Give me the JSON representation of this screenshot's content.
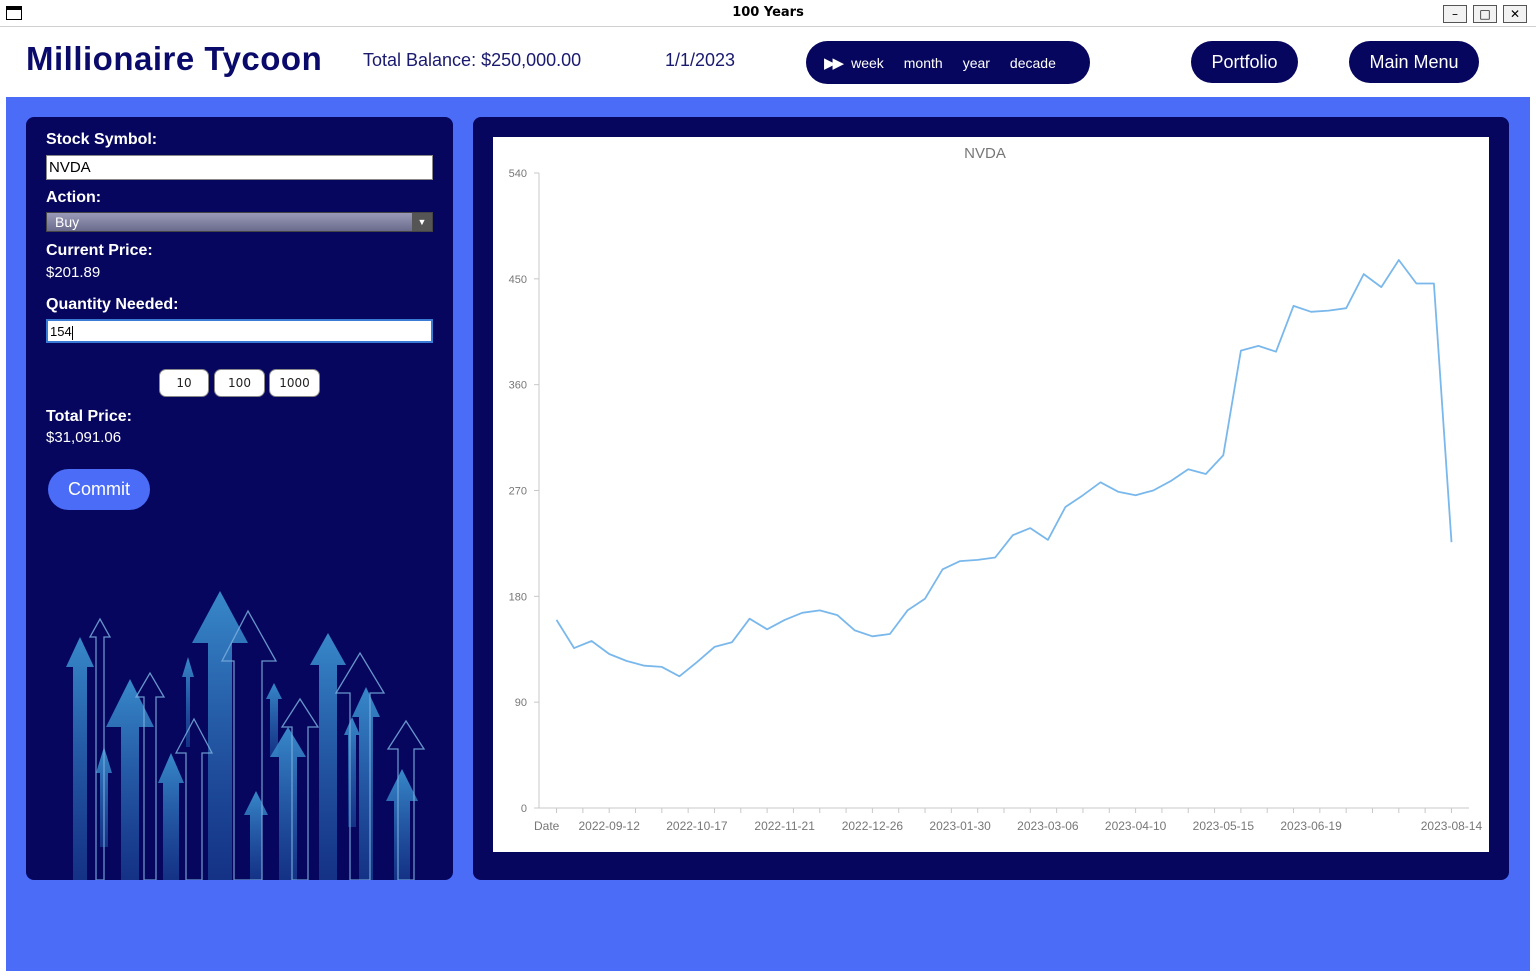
{
  "window": {
    "title": "100 Years",
    "min_glyph": "–",
    "max_glyph": "□",
    "close_glyph": "✕"
  },
  "header": {
    "brand": "Millionaire Tycoon",
    "balance": "Total Balance: $250,000.00",
    "date": "1/1/2023",
    "speed": {
      "icon": "fast-forward-icon",
      "glyph": "▶▶",
      "options": [
        "week",
        "month",
        "year",
        "decade"
      ]
    },
    "portfolio_label": "Portfolio",
    "main_menu_label": "Main Menu"
  },
  "trade": {
    "symbol_label": "Stock Symbol:",
    "symbol_value": "NVDA",
    "action_label": "Action:",
    "action_value": "Buy",
    "current_price_label": "Current Price:",
    "current_price_value": "$201.89",
    "quantity_label": "Quantity Needed:",
    "quantity_value": "154",
    "quick_buttons": [
      "10",
      "100",
      "1000"
    ],
    "total_label": "Total Price:",
    "total_value": "$31,091.06",
    "commit_label": "Commit"
  },
  "colors": {
    "app_bg": "#4a6cf7",
    "panel_bg": "#06065e",
    "brand_text": "#0a0a6a",
    "series_line": "#7ab8ec"
  },
  "chart_data": {
    "type": "line",
    "title": "NVDA",
    "xlabel": "Date",
    "ylabel": "",
    "ylim": [
      0,
      540
    ],
    "yticks": [
      0,
      90,
      180,
      270,
      360,
      450,
      540
    ],
    "xtick_labels": [
      "2022-09-12",
      "2022-10-17",
      "2022-11-21",
      "2022-12-26",
      "2023-01-30",
      "2023-03-06",
      "2023-04-10",
      "2023-05-15",
      "2023-06-19",
      "2023-08-14"
    ],
    "series": [
      {
        "values": [
          [
            "2022-08-22",
            160
          ],
          [
            "2022-08-29",
            136
          ],
          [
            "2022-09-05",
            142
          ],
          [
            "2022-09-12",
            131
          ],
          [
            "2022-09-19",
            125
          ],
          [
            "2022-09-26",
            121
          ],
          [
            "2022-10-03",
            120
          ],
          [
            "2022-10-10",
            112
          ],
          [
            "2022-10-17",
            124
          ],
          [
            "2022-10-24",
            137
          ],
          [
            "2022-10-31",
            141
          ],
          [
            "2022-11-07",
            161
          ],
          [
            "2022-11-14",
            152
          ],
          [
            "2022-11-21",
            160
          ],
          [
            "2022-11-28",
            166
          ],
          [
            "2022-12-05",
            168
          ],
          [
            "2022-12-12",
            164
          ],
          [
            "2022-12-19",
            151
          ],
          [
            "2022-12-26",
            146
          ],
          [
            "2023-01-02",
            148
          ],
          [
            "2023-01-09",
            168
          ],
          [
            "2023-01-16",
            178
          ],
          [
            "2023-01-23",
            203
          ],
          [
            "2023-01-30",
            210
          ],
          [
            "2023-02-06",
            211
          ],
          [
            "2023-02-13",
            213
          ],
          [
            "2023-02-20",
            232
          ],
          [
            "2023-02-27",
            238
          ],
          [
            "2023-03-06",
            228
          ],
          [
            "2023-03-13",
            256
          ],
          [
            "2023-03-20",
            266
          ],
          [
            "2023-03-27",
            277
          ],
          [
            "2023-04-03",
            269
          ],
          [
            "2023-04-10",
            266
          ],
          [
            "2023-04-17",
            270
          ],
          [
            "2023-04-24",
            278
          ],
          [
            "2023-05-01",
            288
          ],
          [
            "2023-05-08",
            284
          ],
          [
            "2023-05-15",
            300
          ],
          [
            "2023-05-22",
            389
          ],
          [
            "2023-05-29",
            393
          ],
          [
            "2023-06-05",
            388
          ],
          [
            "2023-06-12",
            427
          ],
          [
            "2023-06-19",
            422
          ],
          [
            "2023-06-26",
            423
          ],
          [
            "2023-07-03",
            425
          ],
          [
            "2023-07-10",
            454
          ],
          [
            "2023-07-17",
            443
          ],
          [
            "2023-07-24",
            466
          ],
          [
            "2023-07-31",
            446
          ],
          [
            "2023-08-07",
            446
          ],
          [
            "2023-08-14",
            226
          ]
        ]
      }
    ],
    "grid": false,
    "legend": "none"
  }
}
